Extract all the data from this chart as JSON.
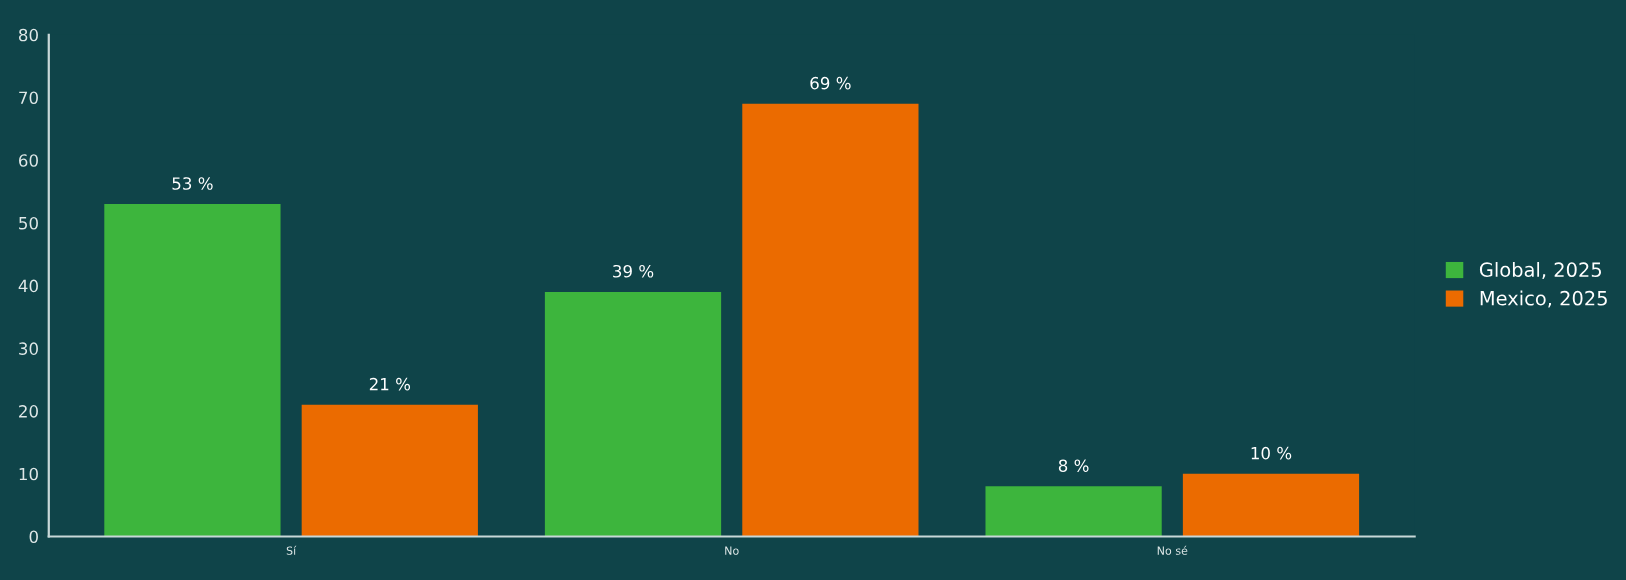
{
  "chart_data": {
    "type": "bar",
    "categories": [
      "Sí",
      "No",
      "No sé"
    ],
    "series": [
      {
        "name": "Global, 2025",
        "color": "#3db53d",
        "values": [
          53,
          39,
          8
        ],
        "value_labels": [
          "53 %",
          "39 %",
          "8 %"
        ]
      },
      {
        "name": "Mexico, 2025",
        "color": "#eb6b00",
        "values": [
          21,
          69,
          10
        ],
        "value_labels": [
          "21 %",
          "69 %",
          "10 %"
        ]
      }
    ],
    "ylim": [
      0,
      80
    ],
    "yticks": [
      0,
      10,
      20,
      30,
      40,
      50,
      60,
      70,
      80
    ],
    "legend": "right",
    "grid": false
  }
}
